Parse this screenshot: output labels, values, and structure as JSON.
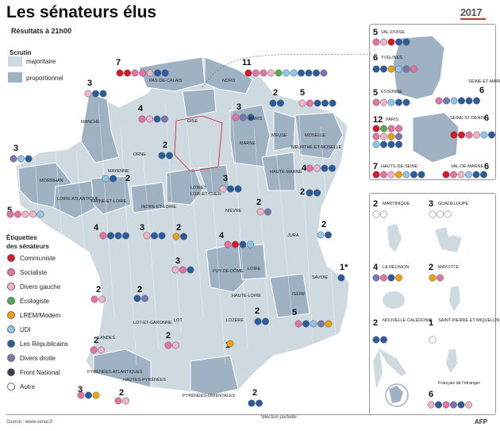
{
  "title": "Les sénateurs élus",
  "subtitle": "Résultats à 21h00",
  "badge": "2017",
  "colors": {
    "Communiste": "#d7182a",
    "Socialiste": "#e773a5",
    "Divers gauche": "#f1b3c8",
    "Écologiste": "#4caf50",
    "LREM/Modem": "#f0a10a",
    "UDI": "#8ec7e8",
    "Les Républicains": "#2a5d9f",
    "Divers droite": "#7a76b3",
    "Front National": "#3a3a4a",
    "Autre": "#ffffff"
  },
  "scrutin": {
    "title": "Scrutin",
    "majoritaire": {
      "label": "majoritaire",
      "color": "#cfd9e0"
    },
    "proportionnel": {
      "label": "proportionnel",
      "color": "#9fb2c4"
    }
  },
  "senateurs": {
    "title_line1": "Étiquettes",
    "title_line2": "des sénateurs",
    "items": [
      {
        "label": "Communiste",
        "key": "Communiste"
      },
      {
        "label": "Socialiste",
        "key": "Socialiste"
      },
      {
        "label": "Divers gauche",
        "key": "Divers gauche"
      },
      {
        "label": "Écologiste",
        "key": "Écologiste"
      },
      {
        "label": "LREM/Modem",
        "key": "LREM/Modem"
      },
      {
        "label": "UDI",
        "key": "UDI"
      },
      {
        "label": "Les Républicains",
        "key": "Les Républicains"
      },
      {
        "label": "Divers droite",
        "key": "Divers droite"
      },
      {
        "label": "Front National",
        "key": "Front National"
      },
      {
        "label": "Autre",
        "key": "Autre"
      }
    ]
  },
  "departments": [
    {
      "name": "PAS-DE-CALAIS",
      "count": "7",
      "dots": [
        "Communiste",
        "Communiste",
        "Socialiste",
        "Socialiste",
        "Divers gauche",
        "Les Républicains",
        "Les Républicains"
      ]
    },
    {
      "name": "NORD",
      "count": "11",
      "dots": [
        "Communiste",
        "Socialiste",
        "Socialiste",
        "Divers gauche",
        "Écologiste",
        "UDI",
        "UDI",
        "Les Républicains",
        "Les Républicains",
        "Les Républicains",
        "Divers droite"
      ]
    },
    {
      "name": "MANCHE",
      "count": "3",
      "dots": [
        "Divers gauche",
        "Les Républicains",
        "Les Républicains"
      ]
    },
    {
      "name": "OISE",
      "count": "4",
      "dots": [
        "Socialiste",
        "Divers gauche",
        "Les Républicains",
        "Divers droite"
      ]
    },
    {
      "name": "PARIS",
      "count": "3",
      "dots": [
        "Socialiste",
        "Divers droite",
        "Les Républicains"
      ]
    },
    {
      "name": "MEUSE",
      "count": "2",
      "dots": [
        "Les Républicains",
        "Les Républicains"
      ]
    },
    {
      "name": "MOSELLE",
      "count": "5",
      "dots": [
        "Divers gauche",
        "Socialiste",
        "Les Républicains",
        "Les Républicains",
        "Les Républicains"
      ]
    },
    {
      "name": "MARNE",
      "count": "",
      "dots": []
    },
    {
      "name": "ORNE",
      "count": "2",
      "dots": [
        "Les Républicains",
        "Les Républicains"
      ]
    },
    {
      "name": "MORBIHAN",
      "count": "3",
      "dots": [
        "Divers droite",
        "UDI",
        "Les Républicains"
      ]
    },
    {
      "name": "MAYENNE",
      "count": "2",
      "dots": [
        "UDI",
        "Les Républicains"
      ]
    },
    {
      "name": "MEURTHE-ET-MOSELLE",
      "count": "4",
      "dots": [
        "Socialiste",
        "Divers gauche",
        "Les Républicains",
        "Les Républicains"
      ]
    },
    {
      "name": "LOIRET",
      "count": "3",
      "dots": [
        "Divers gauche",
        "Les Républicains",
        "Les Républicains"
      ]
    },
    {
      "name": "HAUTE-MARNE",
      "count": "2",
      "dots": [
        "Les Républicains",
        "Les Républicains"
      ]
    },
    {
      "name": "LOIRE-ATLANTIQUE",
      "count": "5",
      "dots": [
        "Socialiste",
        "Socialiste",
        "Divers gauche",
        "Divers gauche",
        "UDI"
      ]
    },
    {
      "name": "MAINE-ET-LOIRE",
      "count": "4",
      "dots": [
        "Socialiste",
        "Les Républicains",
        "Les Républicains",
        "Les Républicains"
      ]
    },
    {
      "name": "INDRE-ET-LOIRE",
      "count": "3",
      "dots": [
        "Divers gauche",
        "Les Républicains",
        "Les Républicains"
      ]
    },
    {
      "name": "LOIR-ET-CHER",
      "count": "2",
      "dots": [
        "LREM/Modem",
        "Les Républicains"
      ]
    },
    {
      "name": "NIÈVRE",
      "count": "2",
      "dots": [
        "Divers gauche",
        "Divers droite"
      ]
    },
    {
      "name": "JURA",
      "count": "2",
      "dots": [
        "UDI",
        "Les Républicains"
      ]
    },
    {
      "name": "LOIRE",
      "count": "4",
      "dots": [
        "Socialiste",
        "Communiste",
        "Les Républicains",
        "UDI"
      ]
    },
    {
      "name": "PUY-DE-DÔME",
      "count": "3",
      "dots": [
        "Divers gauche",
        "Socialiste",
        "Les Républicains"
      ]
    },
    {
      "name": "SAVOIE",
      "count": "1*",
      "dots": [
        "Les Républicains"
      ]
    },
    {
      "name": "HAUTE-LOIRE",
      "count": "",
      "dots": []
    },
    {
      "name": "ISÈRE",
      "count": "5",
      "dots": [
        "Socialiste",
        "Les Républicains",
        "UDI",
        "Divers droite",
        "LREM/Modem"
      ]
    },
    {
      "name": "LANDES",
      "count": "2",
      "dots": [
        "Socialiste",
        "Divers gauche"
      ]
    },
    {
      "name": "LOT-ET-GARONNE",
      "count": "2",
      "dots": [
        "Les Républicains",
        "Divers droite"
      ]
    },
    {
      "name": "LOT",
      "count": "2",
      "dots": [
        "Socialiste",
        "Divers gauche"
      ]
    },
    {
      "name": "LOZÈRE",
      "count": "1",
      "dots": [
        "LREM/Modem"
      ]
    },
    {
      "name": "ARDÈCHE",
      "count": "2",
      "dots": [
        "Les Républicains",
        "Les Républicains"
      ]
    },
    {
      "name": "PYRÉNÉES-ATLANTIQUES",
      "count": "3",
      "dots": [
        "Socialiste",
        "Les Républicains",
        "LREM/Modem"
      ]
    },
    {
      "name": "HAUTES-PYRÉNÉES",
      "count": "2",
      "dots": [
        "Socialiste",
        "Divers gauche"
      ]
    },
    {
      "name": "PYRÉNÉES-ORIENTALES",
      "count": "2",
      "dots": [
        "Les Républicains",
        "Les Républicains"
      ]
    },
    {
      "name": "GERS",
      "count": "2",
      "dots": [
        "Socialiste",
        "Divers gauche"
      ]
    }
  ],
  "idf": [
    {
      "name": "VAL-D'OISE",
      "count": "5",
      "dots": [
        "Socialiste",
        "Divers gauche",
        "Communiste",
        "Les Républicains",
        "Les Républicains"
      ]
    },
    {
      "name": "YVELINES",
      "count": "6",
      "dots": [
        "Les Républicains",
        "Les Républicains",
        "LREM/Modem",
        "UDI",
        "Divers droite",
        "Socialiste"
      ]
    },
    {
      "name": "SEINE-ET-MARNE",
      "count": "6",
      "dots": [
        "Socialiste",
        "Divers droite",
        "UDI",
        "Les Républicains",
        "Les Républicains",
        "Les Républicains"
      ]
    },
    {
      "name": "ESSONNE",
      "count": "5",
      "dots": [
        "Socialiste",
        "Divers gauche",
        "UDI",
        "Les Républicains",
        "Les Républicains"
      ]
    },
    {
      "name": "PARIS",
      "count": "12",
      "dots": [
        "Communiste",
        "Écologiste",
        "Socialiste",
        "Socialiste",
        "Socialiste",
        "Divers gauche",
        "LREM/Modem",
        "Divers droite",
        "UDI",
        "Les Républicains",
        "Les Républicains",
        "Les Républicains"
      ]
    },
    {
      "name": "SEINE-ST-DENIS",
      "count": "6",
      "dots": [
        "Communiste",
        "Communiste",
        "Socialiste",
        "Divers gauche",
        "UDI",
        "Les Républicains"
      ]
    },
    {
      "name": "HAUTS-DE-SEINE",
      "count": "7",
      "dots": [
        "Communiste",
        "Socialiste",
        "Divers gauche",
        "LREM/Modem",
        "UDI",
        "Les Républicains",
        "Les Républicains"
      ]
    },
    {
      "name": "VAL-DE-MARNE",
      "count": "6",
      "dots": [
        "Communiste",
        "Socialiste",
        "Divers gauche",
        "UDI",
        "Les Républicains",
        "Les Républicains"
      ]
    }
  ],
  "outremer": [
    {
      "name": "MARTINIQUE",
      "count": "2",
      "dots": [
        "Autre",
        "Autre"
      ]
    },
    {
      "name": "GUADELOUPE",
      "count": "3",
      "dots": [
        "Autre",
        "Autre",
        "Autre"
      ]
    },
    {
      "name": "LA RÉUNION",
      "count": "4",
      "dots": [
        "Divers droite",
        "Socialiste",
        "Les Républicains",
        "LREM/Modem"
      ]
    },
    {
      "name": "MAYOTTE",
      "count": "2",
      "dots": [
        "LREM/Modem",
        "Socialiste"
      ]
    },
    {
      "name": "NOUVELLE CALÉDONIE",
      "count": "2",
      "dots": [
        "Les Républicains",
        "Les Républicains"
      ]
    },
    {
      "name": "SAINT-PIERRE ET MIQUELON",
      "count": "1",
      "dots": [
        "Autre"
      ]
    },
    {
      "name": "Français de l'étranger",
      "count": "6",
      "dots": [
        "Divers gauche",
        "Les Républicains",
        "Socialiste",
        "Divers droite",
        "Les Républicains",
        "Divers gauche"
      ]
    }
  ],
  "footer": {
    "source": "Source : www.senat.fr",
    "note": "*élection partielle",
    "afp": "AFP"
  }
}
